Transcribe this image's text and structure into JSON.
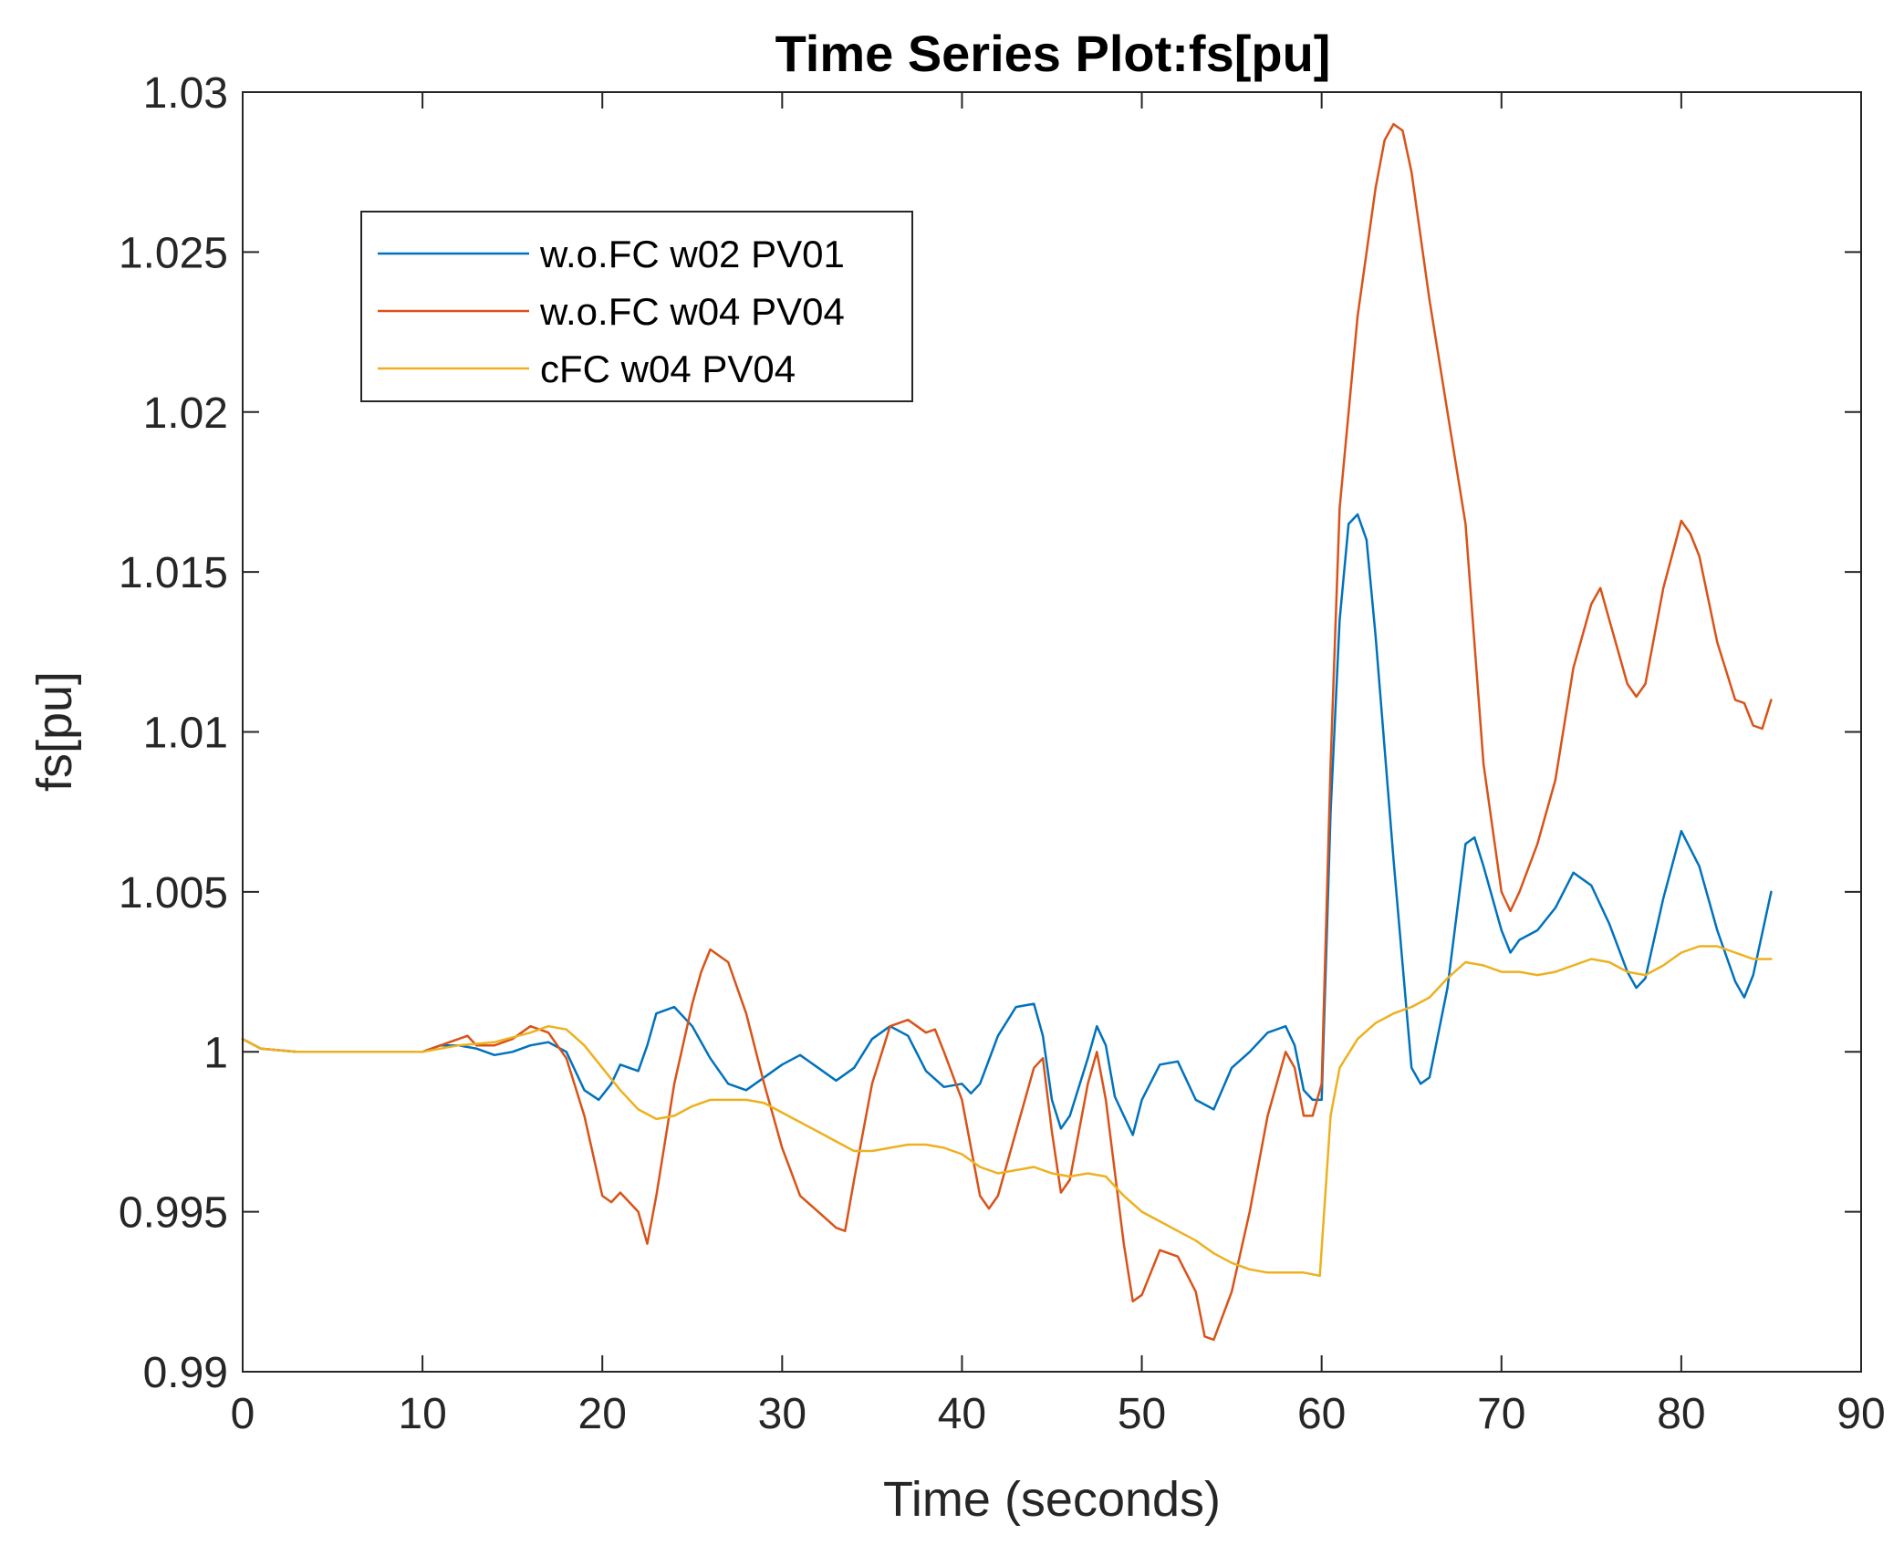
{
  "chart_data": {
    "type": "line",
    "title": "Time Series Plot:fs[pu]",
    "xlabel": "Time (seconds)",
    "ylabel": "fs[pu]",
    "xlim": [
      0,
      90
    ],
    "ylim": [
      0.99,
      1.03
    ],
    "xticks": [
      0,
      10,
      20,
      30,
      40,
      50,
      60,
      70,
      80,
      90
    ],
    "xtick_labels": [
      "0",
      "10",
      "20",
      "30",
      "40",
      "50",
      "60",
      "70",
      "80",
      "90"
    ],
    "yticks": [
      0.99,
      0.995,
      1.0,
      1.005,
      1.01,
      1.015,
      1.02,
      1.025,
      1.03
    ],
    "ytick_labels": [
      "0.99",
      "0.995",
      "1",
      "1.005",
      "1.01",
      "1.015",
      "1.02",
      "1.025",
      "1.03"
    ],
    "grid": false,
    "legend_position": "top-left",
    "series": [
      {
        "name": "w.o.FC w02 PV01",
        "color": "#0072BD",
        "x": [
          0,
          1,
          3,
          10,
          11,
          12,
          13,
          14,
          15,
          16,
          17,
          18,
          19,
          19.8,
          20.5,
          21,
          22,
          22.5,
          23,
          24,
          25,
          26,
          27,
          28,
          29,
          30,
          31,
          32,
          33,
          34,
          35,
          36,
          37,
          38,
          39,
          40,
          40.5,
          41,
          42,
          43,
          44,
          44.5,
          45,
          45.5,
          46,
          47,
          47.5,
          48,
          48.5,
          49,
          49.5,
          50,
          51,
          52,
          53,
          54,
          55,
          56,
          57,
          58,
          58.5,
          59,
          59.5,
          60,
          60.5,
          61,
          61.5,
          62,
          62.5,
          63,
          64,
          65,
          65.5,
          66,
          67,
          68,
          68.5,
          69,
          70,
          70.5,
          71,
          72,
          73,
          74,
          75,
          76,
          77,
          77.5,
          78,
          79,
          80,
          81,
          82,
          83,
          83.5,
          84,
          85
        ],
        "y": [
          1.0004,
          1.0001,
          1.0,
          1.0,
          1.0002,
          1.0002,
          1.0001,
          0.9999,
          1.0,
          1.0002,
          1.0003,
          1.0,
          0.9988,
          0.9985,
          0.999,
          0.9996,
          0.9994,
          1.0002,
          1.0012,
          1.0014,
          1.0008,
          0.9998,
          0.999,
          0.9988,
          0.9992,
          0.9996,
          0.9999,
          0.9995,
          0.9991,
          0.9995,
          1.0004,
          1.0008,
          1.0005,
          0.9994,
          0.9989,
          0.999,
          0.9987,
          0.999,
          1.0005,
          1.0014,
          1.0015,
          1.0005,
          0.9985,
          0.9976,
          0.998,
          0.9998,
          1.0008,
          1.0002,
          0.9986,
          0.998,
          0.9974,
          0.9985,
          0.9996,
          0.9997,
          0.9985,
          0.9982,
          0.9995,
          1.0,
          1.0006,
          1.0008,
          1.0002,
          0.9988,
          0.9985,
          0.9985,
          1.0075,
          1.0135,
          1.0165,
          1.0168,
          1.016,
          1.013,
          1.006,
          0.9995,
          0.999,
          0.9992,
          1.002,
          1.0065,
          1.0067,
          1.0058,
          1.0038,
          1.0031,
          1.0035,
          1.0038,
          1.0045,
          1.0056,
          1.0052,
          1.004,
          1.0025,
          1.002,
          1.0023,
          1.0048,
          1.0069,
          1.0058,
          1.0038,
          1.0022,
          1.0017,
          1.0024,
          1.005
        ]
      },
      {
        "name": "w.o.FC w04 PV04",
        "color": "#D95319",
        "x": [
          0,
          1,
          3,
          10,
          11,
          12,
          12.5,
          13,
          14,
          15,
          16,
          17,
          18,
          19,
          20,
          20.5,
          21,
          22,
          22.5,
          23,
          24,
          25,
          25.5,
          26,
          27,
          28,
          29,
          30,
          31,
          32,
          33,
          33.5,
          34,
          35,
          36,
          37,
          38,
          38.5,
          39,
          40,
          41,
          41.5,
          42,
          43,
          44,
          44.5,
          45,
          45.5,
          46,
          47,
          47.5,
          48,
          49,
          49.5,
          50,
          51,
          52,
          53,
          53.5,
          54,
          55,
          56,
          57,
          58,
          58.5,
          59,
          59.5,
          60,
          60.5,
          61,
          62,
          63,
          63.5,
          64,
          64.5,
          65,
          66,
          67,
          68,
          69,
          70,
          70.5,
          71,
          72,
          73,
          74,
          75,
          75.5,
          76,
          77,
          77.5,
          78,
          79,
          80,
          80.5,
          81,
          82,
          83,
          83.5,
          84,
          84.5,
          85
        ],
        "y": [
          1.0004,
          1.0001,
          1.0,
          1.0,
          1.0002,
          1.0004,
          1.0005,
          1.0002,
          1.0002,
          1.0004,
          1.0008,
          1.0006,
          0.9998,
          0.998,
          0.9955,
          0.9953,
          0.9956,
          0.995,
          0.994,
          0.9955,
          0.999,
          1.0015,
          1.0025,
          1.0032,
          1.0028,
          1.0012,
          0.999,
          0.997,
          0.9955,
          0.995,
          0.9945,
          0.9944,
          0.996,
          0.999,
          1.0008,
          1.001,
          1.0006,
          1.0007,
          1.0,
          0.9985,
          0.9955,
          0.9951,
          0.9955,
          0.9975,
          0.9995,
          0.9998,
          0.9975,
          0.9956,
          0.996,
          0.999,
          1.0,
          0.9985,
          0.994,
          0.9922,
          0.9924,
          0.9938,
          0.9936,
          0.9925,
          0.9911,
          0.991,
          0.9925,
          0.995,
          0.998,
          1.0,
          0.9995,
          0.998,
          0.998,
          0.999,
          1.009,
          1.017,
          1.023,
          1.027,
          1.0285,
          1.029,
          1.0288,
          1.0275,
          1.0235,
          1.02,
          1.0165,
          1.009,
          1.005,
          1.0044,
          1.005,
          1.0065,
          1.0085,
          1.012,
          1.014,
          1.0145,
          1.0135,
          1.0115,
          1.0111,
          1.0115,
          1.0145,
          1.0166,
          1.0162,
          1.0155,
          1.0128,
          1.011,
          1.0109,
          1.0102,
          1.0101,
          1.011
        ]
      },
      {
        "name": "cFC w04 PV04",
        "color": "#EDB120",
        "x": [
          0,
          1,
          3,
          10,
          12,
          14,
          16,
          17,
          18,
          19,
          20,
          21,
          22,
          23,
          24,
          25,
          26,
          27,
          28,
          29,
          30,
          31,
          32,
          33,
          34,
          35,
          36,
          37,
          38,
          39,
          40,
          41,
          42,
          43,
          44,
          45,
          46,
          47,
          48,
          49,
          50,
          51,
          52,
          53,
          54,
          55,
          56,
          57,
          58,
          59,
          59.9,
          60.2,
          60.5,
          61,
          62,
          63,
          64,
          65,
          66,
          67,
          68,
          69,
          70,
          71,
          72,
          73,
          74,
          75,
          76,
          77,
          78,
          79,
          80,
          81,
          82,
          83,
          84,
          85
        ],
        "y": [
          1.0004,
          1.0001,
          1.0,
          1.0,
          1.0002,
          1.0003,
          1.0006,
          1.0008,
          1.0007,
          1.0002,
          0.9995,
          0.9988,
          0.9982,
          0.9979,
          0.998,
          0.9983,
          0.9985,
          0.9985,
          0.9985,
          0.9984,
          0.9981,
          0.9978,
          0.9975,
          0.9972,
          0.9969,
          0.9969,
          0.997,
          0.9971,
          0.9971,
          0.997,
          0.9968,
          0.9964,
          0.9962,
          0.9963,
          0.9964,
          0.9962,
          0.9961,
          0.9962,
          0.9961,
          0.9955,
          0.995,
          0.9947,
          0.9944,
          0.9941,
          0.9937,
          0.9934,
          0.9932,
          0.9931,
          0.9931,
          0.9931,
          0.993,
          0.9955,
          0.998,
          0.9995,
          1.0004,
          1.0009,
          1.0012,
          1.0014,
          1.0017,
          1.0023,
          1.0028,
          1.0027,
          1.0025,
          1.0025,
          1.0024,
          1.0025,
          1.0027,
          1.0029,
          1.0028,
          1.0025,
          1.0024,
          1.0027,
          1.0031,
          1.0033,
          1.0033,
          1.0031,
          1.0029,
          1.0029
        ]
      }
    ]
  }
}
